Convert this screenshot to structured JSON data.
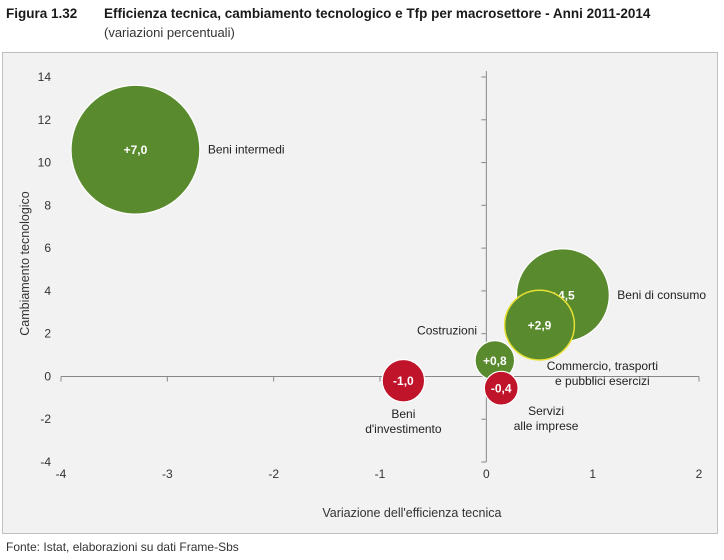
{
  "figure": {
    "label": "Figura 1.32",
    "title": "Efficienza tecnica, cambiamento tecnologico e Tfp per macrosettore - Anni 2011-2014",
    "subtitle": "(variazioni percentuali)",
    "source": "Fonte: Istat, elaborazioni su dati Frame-Sbs"
  },
  "chart_data": {
    "type": "scatter",
    "variant": "bubble",
    "title": "Efficienza tecnica, cambiamento tecnologico e Tfp per macrosettore - Anni 2011-2014",
    "xlabel": "Variazione dell'efficienza tecnica",
    "ylabel": "Cambiamento tecnologico",
    "xlim": [
      -4,
      2
    ],
    "ylim": [
      -4,
      14
    ],
    "x_ticks": [
      -4,
      -3,
      -2,
      -1,
      0,
      1,
      2
    ],
    "y_ticks": [
      -4,
      -2,
      0,
      2,
      4,
      6,
      8,
      10,
      12,
      14
    ],
    "grid": false,
    "colors": {
      "positive": "#5a8a2e",
      "negative": "#c0142b",
      "axis": "#888888",
      "bubble_outline": "#e6e033"
    },
    "points": [
      {
        "name": "Beni intermedi",
        "label_lines": [
          "Beni intermedi"
        ],
        "label_pos": "right",
        "x": -3.3,
        "y": 10.6,
        "tfp": 7.0,
        "value_label": "+7,0"
      },
      {
        "name": "Beni di consumo",
        "label_lines": [
          "Beni di consumo"
        ],
        "label_pos": "right",
        "x": 0.72,
        "y": 3.8,
        "tfp": 4.5,
        "value_label": "+4,5"
      },
      {
        "name": "Commercio, trasporti e pubblici esercizi",
        "label_lines": [
          "Commercio, trasporti",
          "e pubblici esercizi"
        ],
        "label_pos": "below-right",
        "x": 0.5,
        "y": 2.4,
        "tfp": 2.9,
        "value_label": "+2,9"
      },
      {
        "name": "Costruzioni",
        "label_lines": [
          "Costruzioni"
        ],
        "label_pos": "above-left",
        "x": 0.08,
        "y": 0.75,
        "tfp": 0.8,
        "value_label": "+0,8"
      },
      {
        "name": "Beni d'investimento",
        "label_lines": [
          "Beni",
          "d'investimento"
        ],
        "label_pos": "below",
        "x": -0.78,
        "y": -0.2,
        "tfp": -1.0,
        "value_label": "-1,0"
      },
      {
        "name": "Servizi alle imprese",
        "label_lines": [
          "Servizi",
          "alle imprese"
        ],
        "label_pos": "below-right",
        "x": 0.14,
        "y": -0.55,
        "tfp": -0.4,
        "value_label": "-0,4"
      }
    ]
  }
}
